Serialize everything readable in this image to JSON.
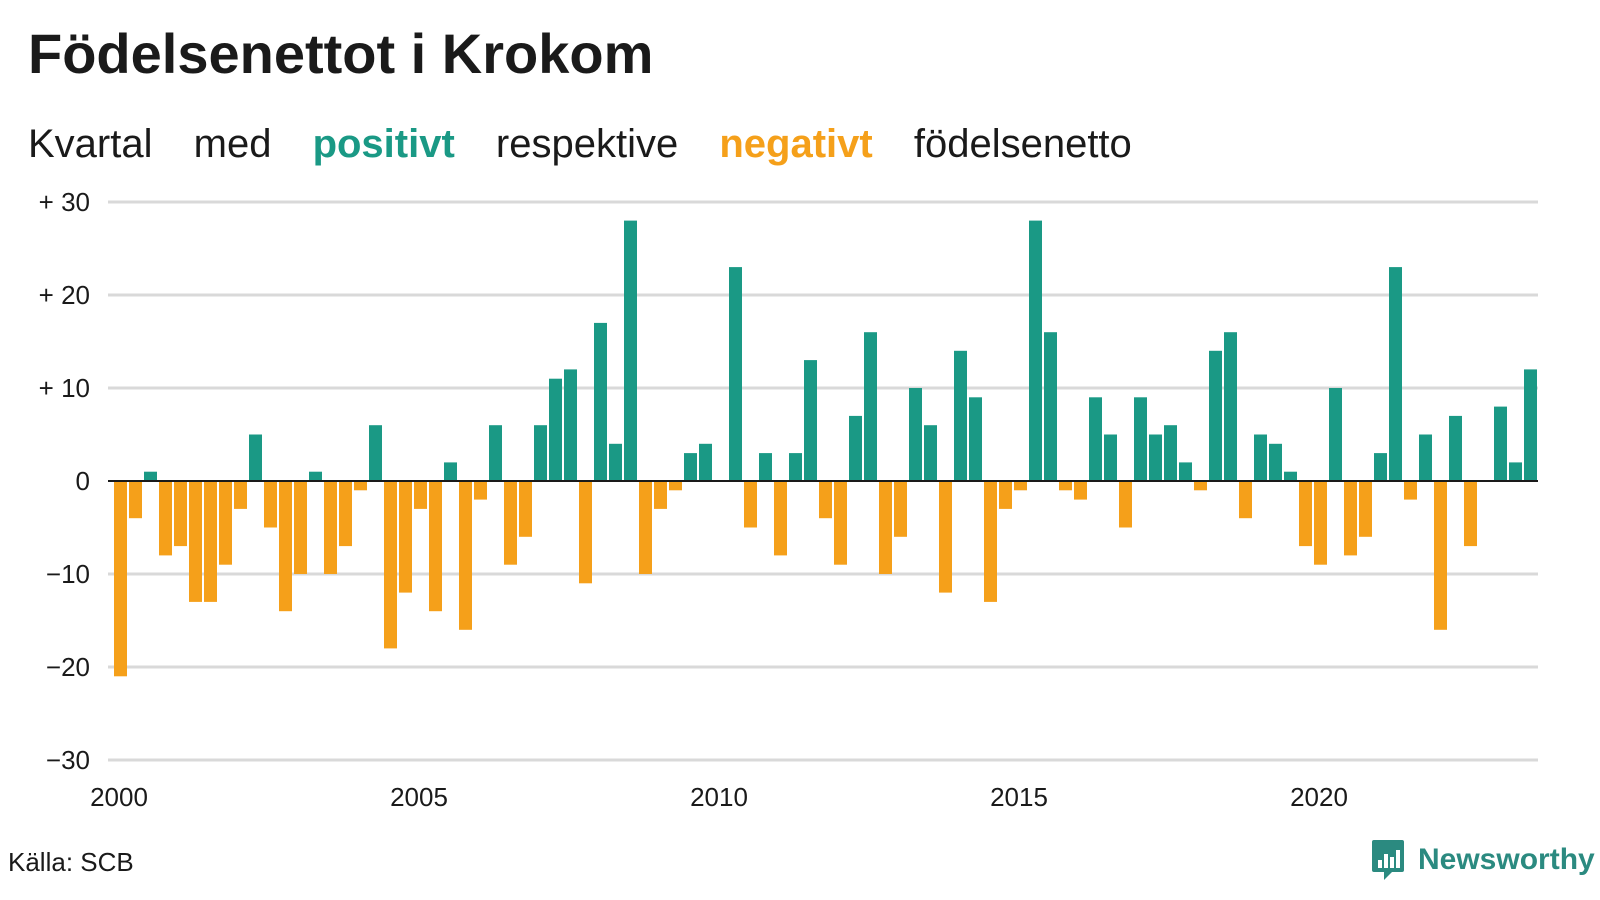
{
  "title": "Födelsenettot i Krokom",
  "subtitle": {
    "w1": "Kvartal",
    "w2": "med",
    "positive": "positivt",
    "w3": "respektive",
    "negative": "negativt",
    "w4": "födelsenetto"
  },
  "colors": {
    "positive": "#1a9985",
    "negative": "#f5a01a",
    "grid": "#d9d9d9",
    "axis": "#1a1a1a"
  },
  "source": "Källa: SCB",
  "brand": {
    "name": "Newsworthy",
    "icon": "bar-chart-speech-icon"
  },
  "chart_data": {
    "type": "bar",
    "title": "Födelsenettot i Krokom",
    "xlabel": "",
    "ylabel": "",
    "ylim": [
      -30,
      30
    ],
    "yticks": [
      {
        "value": 30,
        "label": "+ 30"
      },
      {
        "value": 20,
        "label": "+ 20"
      },
      {
        "value": 10,
        "label": "+ 10"
      },
      {
        "value": 0,
        "label": "0"
      },
      {
        "value": -10,
        "label": "−10"
      },
      {
        "value": -20,
        "label": "−20"
      },
      {
        "value": -30,
        "label": "−30"
      }
    ],
    "xticks": [
      "2000",
      "2005",
      "2010",
      "2015",
      "2020"
    ],
    "grid": true,
    "x_start_year": 2000,
    "quarters_per_year": 4,
    "values": [
      -21,
      -4,
      1,
      -8,
      -7,
      -13,
      -13,
      -9,
      -3,
      5,
      -5,
      -14,
      -10,
      1,
      -10,
      -7,
      -1,
      6,
      -18,
      -12,
      -3,
      -14,
      2,
      -16,
      -2,
      6,
      -9,
      -6,
      6,
      11,
      12,
      -11,
      17,
      4,
      28,
      -10,
      -3,
      -1,
      3,
      4,
      0,
      23,
      -5,
      3,
      -8,
      3,
      13,
      -4,
      -9,
      7,
      16,
      -10,
      -6,
      10,
      6,
      -12,
      14,
      9,
      -13,
      -3,
      -1,
      28,
      16,
      -1,
      -2,
      9,
      5,
      -5,
      9,
      5,
      6,
      2,
      -1,
      14,
      16,
      -4,
      5,
      4,
      1,
      -7,
      -9,
      10,
      -8,
      -6,
      3,
      23,
      -2,
      5,
      -16,
      7,
      -7,
      0,
      8,
      2,
      12
    ]
  }
}
